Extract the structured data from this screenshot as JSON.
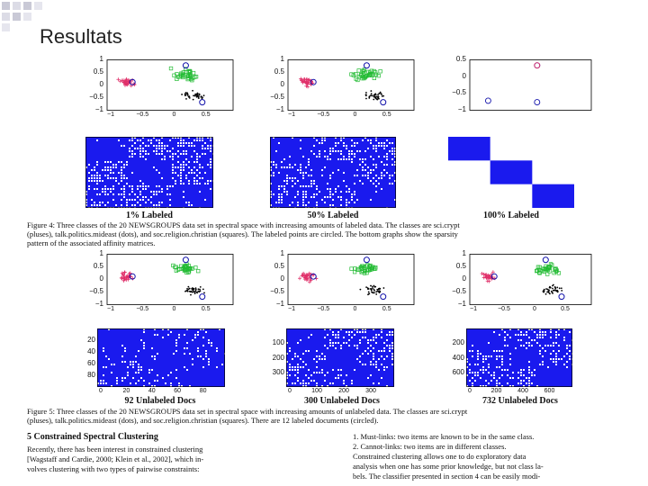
{
  "slide": {
    "title": "Resultats"
  },
  "figure4": {
    "panels": [
      {
        "label": "1% Labeled",
        "y_ticks": [
          "1",
          "0.5",
          "0",
          "−0.5",
          "−1"
        ],
        "x_ticks": [
          "−1",
          "−0.5",
          "0",
          "0.5"
        ]
      },
      {
        "label": "50% Labeled",
        "y_ticks": [
          "1",
          "0.5",
          "0",
          "−0.5",
          "−1"
        ],
        "x_ticks": [
          "−1",
          "−0.5",
          "0",
          "0.5"
        ]
      },
      {
        "label": "100% Labeled",
        "y_ticks": [
          "0.5",
          "0",
          "−0.5",
          "−1"
        ],
        "x_ticks": []
      }
    ],
    "caption_line1": "Figure 4: Three classes of the 20 NEWSGROUPS data set in spectral space with increasing amounts of labeled data. The classes are sci.crypt",
    "caption_line2": "(pluses), talk.politics.mideast (dots), and soc.religion.christian (squares). The labeled points are circled. The bottom graphs show the sparsity",
    "caption_line3": "pattern of the associated affinity matrices."
  },
  "figure5": {
    "panels": [
      {
        "label": "92 Unlabeled Docs",
        "y_ticks": [
          "1",
          "0.5",
          "0",
          "−0.5",
          "−1"
        ],
        "x_ticks": [
          "−1",
          "−0.5",
          "0",
          "0.5"
        ],
        "m_y_ticks": [
          "20",
          "40",
          "60",
          "80"
        ],
        "m_x_ticks": [
          "0",
          "20",
          "40",
          "60",
          "80"
        ]
      },
      {
        "label": "300 Unlabeled Docs",
        "y_ticks": [
          "1",
          "0.5",
          "0",
          "−0.5",
          "−1"
        ],
        "x_ticks": [
          "−1",
          "−0.5",
          "0",
          "0.5"
        ],
        "m_y_ticks": [
          "100",
          "200",
          "300"
        ],
        "m_x_ticks": [
          "0",
          "100",
          "200",
          "300"
        ]
      },
      {
        "label": "732 Unlabeled Docs",
        "y_ticks": [
          "1",
          "0.5",
          "0",
          "−0.5",
          "−1"
        ],
        "x_ticks": [
          "−1",
          "−0.5",
          "0",
          "0.5"
        ],
        "m_y_ticks": [
          "200",
          "400",
          "600"
        ],
        "m_x_ticks": [
          "0",
          "200",
          "400",
          "600"
        ]
      }
    ],
    "caption_line1": "Figure 5: Three classes of the 20 NEWSGROUPS data set in spectral space with increasing amounts of unlabeled data. The classes are sci.crypt",
    "caption_line2": "(pluses), talk.politics.mideast (dots), and soc.religion.christian (squares). There are 12 labeled documents (circled)."
  },
  "section": {
    "heading": "5   Constrained Spectral Clustering",
    "left_line1": "Recently, there has been interest in constrained clustering",
    "left_line2": "[Wagstaff and Cardie, 2000; Klein et al., 2002], which in-",
    "left_line3": "volves clustering with two types of pairwise constraints:",
    "right_line1": "1.  Must-links: two items are known to be in the same class.",
    "right_line2": "2.  Cannot-links: two items are in different classes.",
    "right_line3": "Constrained clustering allows one to do exploratory data",
    "right_line4": "analysis when one has some prior knowledge, but not class la-",
    "right_line5": "bels. The classifier presented in section 4 can be easily modi-"
  },
  "colors": {
    "matrix_blue": "#1a1aee",
    "deco_square": "#c9c9d6",
    "plus": "#e0306a",
    "square": "#22bb33",
    "dot": "#000000",
    "circle": "#1010aa"
  }
}
